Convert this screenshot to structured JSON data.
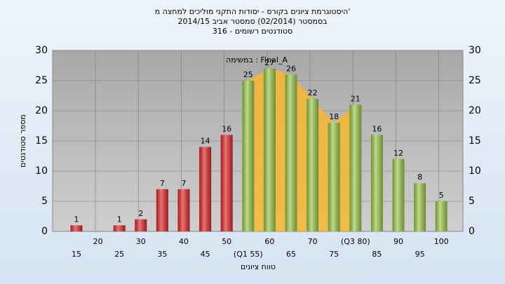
{
  "chart_data": {
    "type": "bar",
    "title": "היסטוגרמת ציונים בקורס - יסודות התקני מוליכים למחצה מ'",
    "subtitle": "בסמסטר  (02/2014)  סמסטר אביב 2014/15",
    "subtitle2": "סטודנטים רשומים - 316",
    "annotation": "במשימה : Final_A",
    "y_label": "מספר סטודנטים",
    "x_label": "טווח ציונים",
    "categories": [
      "15",
      "20",
      "25",
      "30",
      "35",
      "40",
      "45",
      "50",
      "(Q1 55)",
      "60",
      "65",
      "70",
      "75",
      "(Q3 80)",
      "85",
      "90",
      "95",
      "100"
    ],
    "values": [
      1,
      null,
      1,
      2,
      7,
      7,
      14,
      16,
      25,
      27,
      26,
      22,
      18,
      21,
      16,
      12,
      8,
      5
    ],
    "colors": [
      "#e02828",
      "#e02828",
      "#e02828",
      "#e02828",
      "#e02828",
      "#e02828",
      "#e02828",
      "#e02828",
      "#9cc84a",
      "#9cc84a",
      "#9cc84a",
      "#9cc84a",
      "#9cc84a",
      "#9cc84a",
      "#9cc84a",
      "#9cc84a",
      "#9cc84a",
      "#9cc84a"
    ],
    "highlight_color": "#f7b733",
    "ylim": [
      0,
      30
    ],
    "yticks": [
      0,
      5,
      10,
      15,
      20,
      25,
      30
    ],
    "grid": true
  }
}
